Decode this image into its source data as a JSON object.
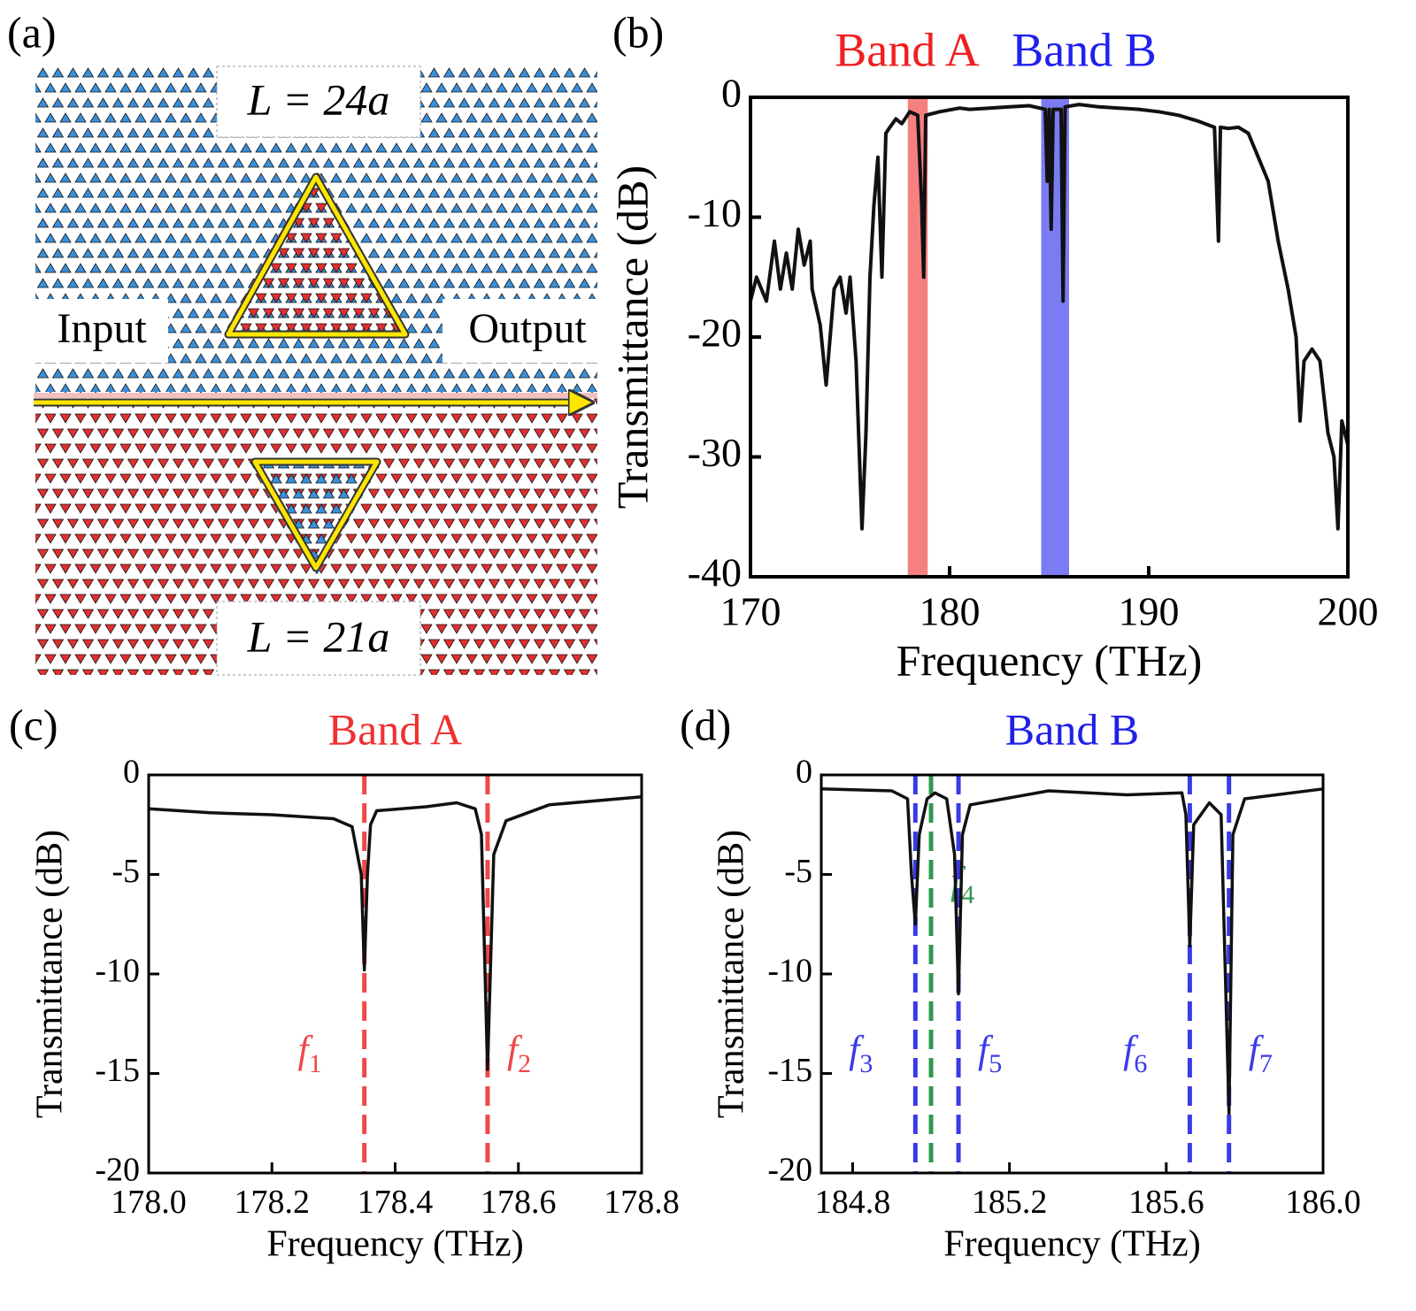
{
  "diagram": {
    "panel_label": "(a)",
    "top_label": "L = 24a",
    "bottom_label": "L = 21a",
    "input_label": "Input",
    "output_label": "Output"
  },
  "chart_data": [
    {
      "type": "line",
      "panel_label": "(b)",
      "xlabel": "Frequency (THz)",
      "ylabel": "Transmittance (dB)",
      "xlim": [
        170,
        200
      ],
      "ylim": [
        -40,
        0
      ],
      "xticks": [
        170,
        180,
        190,
        200
      ],
      "yticks": [
        0,
        -10,
        -20,
        -30,
        -40
      ],
      "bands": [
        {
          "label": "Band A",
          "color": "#f46060",
          "range": [
            177.9,
            178.9
          ]
        },
        {
          "label": "Band B",
          "color": "#5a5af0",
          "range": [
            184.6,
            186.0
          ]
        }
      ],
      "x": [
        170,
        170.3,
        170.8,
        171.2,
        171.5,
        171.8,
        172.1,
        172.4,
        172.7,
        173.0,
        173.1,
        173.5,
        173.8,
        174.0,
        174.2,
        174.5,
        174.8,
        175.0,
        175.3,
        175.6,
        175.8,
        176.0,
        176.2,
        176.4,
        176.6,
        176.8,
        177.0,
        177.3,
        177.6,
        178.0,
        178.4,
        178.6,
        178.7,
        178.8,
        179.5,
        180.5,
        181.0,
        182.0,
        183.0,
        184.0,
        184.8,
        184.9,
        185.0,
        185.1,
        185.2,
        185.6,
        185.7,
        185.8,
        186.5,
        187.5,
        188.5,
        189.5,
        190.5,
        191.5,
        192.5,
        193.3,
        193.5,
        193.6,
        194.0,
        194.5,
        195.0,
        195.5,
        196.0,
        196.5,
        197.0,
        197.4,
        197.6,
        197.8,
        198.2,
        198.6,
        199.0,
        199.3,
        199.5,
        199.7,
        200
      ],
      "series": [
        {
          "name": "Transmittance",
          "color": "#111111",
          "values": [
            -17,
            -15,
            -17,
            -12,
            -16,
            -13,
            -16,
            -11,
            -14,
            -12,
            -16,
            -19,
            -24,
            -20,
            -16,
            -15,
            -18,
            -15,
            -22,
            -36,
            -28,
            -15,
            -9,
            -5,
            -15,
            -3,
            -2.5,
            -1.8,
            -2.2,
            -1.2,
            -1.5,
            -9,
            -15,
            -1.5,
            -1.2,
            -0.9,
            -1.0,
            -0.9,
            -0.8,
            -0.7,
            -1.0,
            -7,
            -1.0,
            -11,
            -1.0,
            -1.0,
            -17,
            -0.8,
            -0.6,
            -0.8,
            -0.9,
            -1.0,
            -1.2,
            -1.5,
            -2,
            -2.5,
            -12,
            -2.5,
            -2.6,
            -2.5,
            -3,
            -5,
            -7,
            -12,
            -16,
            -20,
            -27,
            -22,
            -21,
            -22,
            -28,
            -30,
            -36,
            -27,
            -29
          ]
        }
      ]
    },
    {
      "type": "line",
      "panel_label": "(c)",
      "title": "Band A",
      "title_color": "#f03030",
      "xlabel": "Frequency (THz)",
      "ylabel": "Transmittance (dB)",
      "xlim": [
        178.0,
        178.8
      ],
      "ylim": [
        -20,
        0
      ],
      "xticks": [
        {
          "value": 178.0,
          "label": "178.0"
        },
        178.2,
        178.4,
        178.6,
        178.8
      ],
      "yticks": [
        0,
        -5,
        -10,
        -15,
        -20
      ],
      "markers": [
        {
          "x": 178.35,
          "color": "#f04848",
          "label": "f",
          "subscript": "1"
        },
        {
          "x": 178.55,
          "color": "#f04848",
          "label": "f",
          "subscript": "2"
        }
      ],
      "x": [
        178.0,
        178.1,
        178.2,
        178.3,
        178.33,
        178.345,
        178.35,
        178.355,
        178.36,
        178.37,
        178.45,
        178.5,
        178.53,
        178.54,
        178.55,
        178.56,
        178.58,
        178.65,
        178.8
      ],
      "series": [
        {
          "name": "Transmittance",
          "color": "#111111",
          "values": [
            -1.7,
            -1.9,
            -2.0,
            -2.2,
            -2.6,
            -5,
            -9.8,
            -5,
            -2.5,
            -1.8,
            -1.6,
            -1.4,
            -1.7,
            -3,
            -14.8,
            -4,
            -2.3,
            -1.5,
            -1.1
          ]
        }
      ]
    },
    {
      "type": "line",
      "panel_label": "(d)",
      "title": "Band B",
      "title_color": "#2020e8",
      "xlabel": "Frequency (THz)",
      "ylabel": "Transmittance (dB)",
      "xlim": [
        184.72,
        186.0
      ],
      "ylim": [
        -20,
        0
      ],
      "xticks": [
        184.8,
        185.2,
        185.6,
        {
          "value": 186.0,
          "label": "186.0"
        }
      ],
      "yticks": [
        0,
        -5,
        -10,
        -15,
        -20
      ],
      "markers": [
        {
          "x": 184.96,
          "color": "#3a3ae8",
          "label": "f",
          "subscript": "3"
        },
        {
          "x": 185.0,
          "color": "#2f9a50",
          "label": "f",
          "subscript": "4"
        },
        {
          "x": 185.07,
          "color": "#3a3ae8",
          "label": "f",
          "subscript": "5"
        },
        {
          "x": 185.66,
          "color": "#3a3ae8",
          "label": "f",
          "subscript": "6"
        },
        {
          "x": 185.76,
          "color": "#3a3ae8",
          "label": "f",
          "subscript": "7"
        }
      ],
      "x": [
        184.72,
        184.9,
        184.94,
        184.95,
        184.96,
        184.97,
        184.99,
        185.01,
        185.04,
        185.06,
        185.07,
        185.08,
        185.1,
        185.3,
        185.5,
        185.64,
        185.65,
        185.66,
        185.67,
        185.71,
        185.74,
        185.76,
        185.77,
        185.8,
        186.0
      ],
      "series": [
        {
          "name": "Transmittance",
          "color": "#111111",
          "values": [
            -0.7,
            -0.8,
            -1.2,
            -5,
            -7.5,
            -3,
            -1.2,
            -0.9,
            -1.2,
            -4,
            -11,
            -3,
            -1.5,
            -0.8,
            -1.0,
            -0.9,
            -2,
            -8.6,
            -2.5,
            -1.4,
            -2,
            -17,
            -3,
            -1.2,
            -0.7
          ]
        }
      ]
    }
  ]
}
